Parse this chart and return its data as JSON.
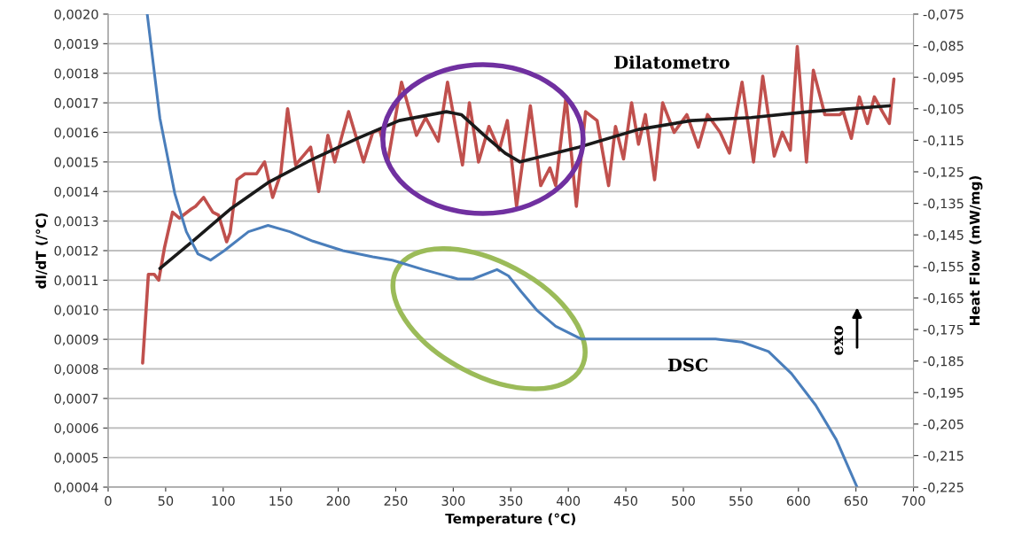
{
  "chart_data": {
    "type": "line",
    "xlabel": "Temperature (°C)",
    "ylabel": "dl/dT (/°C)",
    "y2label": "Heat Flow (mW/mg)",
    "xlim": [
      0,
      700
    ],
    "xticks": [
      0,
      50,
      100,
      150,
      200,
      250,
      300,
      350,
      400,
      450,
      500,
      550,
      600,
      650,
      700
    ],
    "ylim": [
      0.0004,
      0.002
    ],
    "yticks": [
      {
        "value": 0.0004,
        "label": "0,0004"
      },
      {
        "value": 0.0005,
        "label": "0,0005"
      },
      {
        "value": 0.0006,
        "label": "0,0006"
      },
      {
        "value": 0.0007,
        "label": "0,0007"
      },
      {
        "value": 0.0008,
        "label": "0,0008"
      },
      {
        "value": 0.0009,
        "label": "0,0009"
      },
      {
        "value": 0.001,
        "label": "0,0010"
      },
      {
        "value": 0.0011,
        "label": "0,0011"
      },
      {
        "value": 0.0012,
        "label": "0,0012"
      },
      {
        "value": 0.0013,
        "label": "0,0013"
      },
      {
        "value": 0.0014,
        "label": "0,0014"
      },
      {
        "value": 0.0015,
        "label": "0,0015"
      },
      {
        "value": 0.0016,
        "label": "0,0016"
      },
      {
        "value": 0.0017,
        "label": "0,0017"
      },
      {
        "value": 0.0018,
        "label": "0,0018"
      },
      {
        "value": 0.0019,
        "label": "0,0019"
      },
      {
        "value": 0.002,
        "label": "0,0020"
      }
    ],
    "y2lim": [
      -0.225,
      -0.075
    ],
    "y2ticks": [
      {
        "value": -0.225,
        "label": "-0,225"
      },
      {
        "value": -0.215,
        "label": "-0,215"
      },
      {
        "value": -0.205,
        "label": "-0,205"
      },
      {
        "value": -0.195,
        "label": "-0,195"
      },
      {
        "value": -0.185,
        "label": "-0,185"
      },
      {
        "value": -0.175,
        "label": "-0,175"
      },
      {
        "value": -0.165,
        "label": "-0,165"
      },
      {
        "value": -0.155,
        "label": "-0,155"
      },
      {
        "value": -0.145,
        "label": "-0,145"
      },
      {
        "value": -0.135,
        "label": "-0,135"
      },
      {
        "value": -0.125,
        "label": "-0,125"
      },
      {
        "value": -0.115,
        "label": "-0,115"
      },
      {
        "value": -0.105,
        "label": "-0,105"
      },
      {
        "value": -0.095,
        "label": "-0,095"
      },
      {
        "value": -0.085,
        "label": "-0,085"
      },
      {
        "value": -0.075,
        "label": "-0,075"
      }
    ],
    "grid": "y",
    "legend": false,
    "marker": "none",
    "line_style": "solid",
    "annotations": [
      "exo"
    ],
    "series": [
      {
        "name": "Dilatometro",
        "color": "#c0504d",
        "x": [
          30,
          35,
          40,
          44,
          49,
          56,
          62,
          72,
          76,
          83,
          91,
          96,
          103,
          106,
          112,
          119,
          129,
          136,
          143,
          150,
          156,
          163,
          176,
          183,
          191,
          197,
          209,
          222,
          230,
          236,
          243,
          255,
          268,
          276,
          287,
          295,
          308,
          314,
          322,
          331,
          340,
          347,
          355,
          367,
          376,
          384,
          389,
          398,
          407,
          415,
          425,
          435,
          441,
          448,
          455,
          461,
          467,
          475,
          482,
          492,
          503,
          513,
          521,
          532,
          540,
          551,
          561,
          569,
          579,
          586,
          593,
          599,
          607,
          613,
          623,
          636,
          639,
          646,
          653,
          660,
          666,
          673,
          679,
          683
        ],
        "values": [
          0.00082,
          0.00112,
          0.00112,
          0.0011,
          0.00121,
          0.00133,
          0.00131,
          0.00134,
          0.00135,
          0.00138,
          0.00133,
          0.00132,
          0.00123,
          0.00126,
          0.00144,
          0.00146,
          0.00146,
          0.0015,
          0.00138,
          0.00146,
          0.00168,
          0.00149,
          0.00155,
          0.0014,
          0.00159,
          0.0015,
          0.00167,
          0.0015,
          0.0016,
          0.00161,
          0.0015,
          0.00177,
          0.00159,
          0.00165,
          0.00157,
          0.00177,
          0.00149,
          0.0017,
          0.0015,
          0.00162,
          0.00154,
          0.00164,
          0.00135,
          0.00169,
          0.00142,
          0.00148,
          0.00142,
          0.00172,
          0.00135,
          0.00167,
          0.00164,
          0.00142,
          0.00162,
          0.00151,
          0.0017,
          0.00156,
          0.00166,
          0.00144,
          0.0017,
          0.0016,
          0.00166,
          0.00155,
          0.00166,
          0.0016,
          0.00153,
          0.00177,
          0.0015,
          0.00179,
          0.00152,
          0.0016,
          0.00154,
          0.00189,
          0.0015,
          0.00181,
          0.00166,
          0.00166,
          0.00167,
          0.00158,
          0.00172,
          0.00163,
          0.00172,
          0.00167,
          0.00163,
          0.00178
        ]
      },
      {
        "color": "#1a1a1a",
        "x": [
          45,
          76,
          106,
          139,
          178,
          217,
          253,
          294,
          307,
          327,
          345,
          358,
          378,
          409,
          461,
          507,
          559,
          609,
          679
        ],
        "values": [
          0.00114,
          0.00124,
          0.00134,
          0.00143,
          0.00151,
          0.00158,
          0.00164,
          0.00167,
          0.00166,
          0.00159,
          0.00153,
          0.0015,
          0.00152,
          0.00155,
          0.00161,
          0.00164,
          0.00165,
          0.00167,
          0.00169
        ]
      },
      {
        "name": "DSC",
        "color": "#4a7ebb",
        "axis": "y2",
        "x": [
          34,
          45,
          58,
          68,
          78,
          89,
          101,
          122,
          139,
          158,
          178,
          204,
          230,
          247,
          274,
          304,
          317,
          338,
          348,
          359,
          373,
          389,
          411,
          492,
          528,
          551,
          574,
          594,
          615,
          633,
          651
        ],
        "values": [
          -0.075,
          -0.108,
          -0.132,
          -0.144,
          -0.151,
          -0.153,
          -0.15,
          -0.144,
          -0.142,
          -0.144,
          -0.147,
          -0.15,
          -0.152,
          -0.153,
          -0.156,
          -0.159,
          -0.159,
          -0.156,
          -0.158,
          -0.163,
          -0.169,
          -0.174,
          -0.178,
          -0.178,
          -0.178,
          -0.179,
          -0.182,
          -0.189,
          -0.199,
          -0.21,
          -0.225
        ]
      }
    ]
  }
}
